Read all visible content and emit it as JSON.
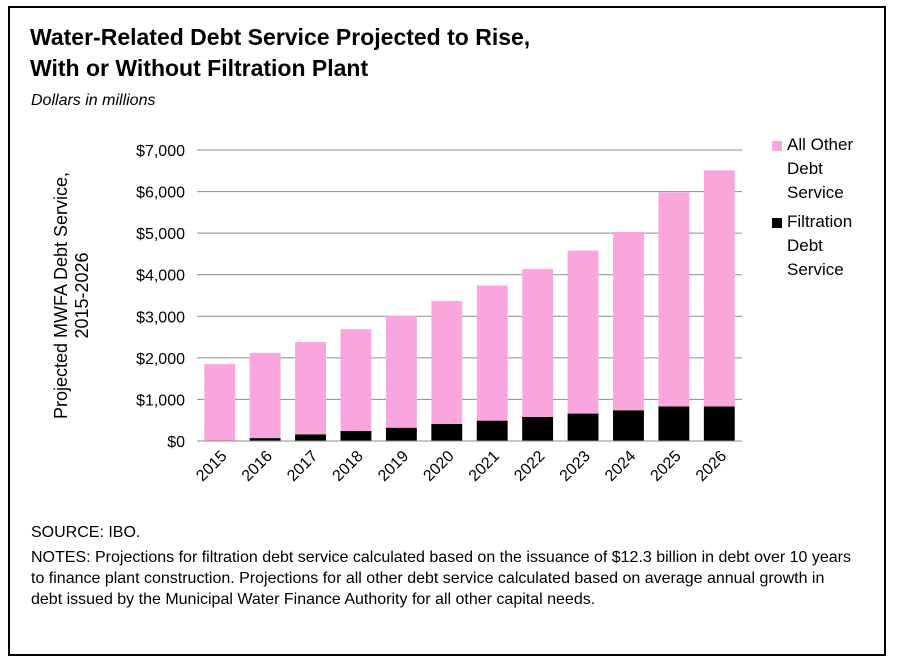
{
  "title_line1": "Water-Related Debt Service Projected to Rise,",
  "title_line2": "With or Without Filtration Plant",
  "subtitle": "Dollars in millions",
  "source": "SOURCE: IBO.",
  "notes": "NOTES: Projections for filtration debt service calculated based on the issuance of $12.3 billion in debt over 10 years to finance plant construction. Projections for all other debt service calculated based on average annual growth in debt issued by the Municipal Water Finance Authority for all other capital needs.",
  "colors": {
    "other": "#F9A6DE",
    "filtration": "#000000",
    "grid": "#8C8C8C"
  },
  "chart_data": {
    "type": "bar",
    "stacked": true,
    "ylabel_line1": "Projected MWFA Debt Service,",
    "ylabel_line2": "2015-2026",
    "ylim": [
      0,
      7000
    ],
    "y_ticks": [
      0,
      1000,
      2000,
      3000,
      4000,
      5000,
      6000,
      7000
    ],
    "y_tick_labels": [
      "$0",
      "$1,000",
      "$2,000",
      "$3,000",
      "$4,000",
      "$5,000",
      "$6,000",
      "$7,000"
    ],
    "categories": [
      "2015",
      "2016",
      "2017",
      "2018",
      "2019",
      "2020",
      "2021",
      "2022",
      "2023",
      "2024",
      "2025",
      "2026"
    ],
    "series": [
      {
        "name": "Filtration Debt Service",
        "legend_lines": [
          "Filtration",
          "Debt",
          "Service"
        ],
        "color": "#000000",
        "values": [
          0,
          70,
          160,
          240,
          320,
          410,
          490,
          580,
          660,
          740,
          830,
          830
        ]
      },
      {
        "name": "All Other Debt Service",
        "legend_lines": [
          "All Other",
          "Debt",
          "Service"
        ],
        "color": "#F9A6DE",
        "values": [
          1850,
          2050,
          2220,
          2450,
          2690,
          2960,
          3250,
          3560,
          3920,
          4290,
          5150,
          5680
        ]
      }
    ],
    "grid": true,
    "legend_position": "right"
  }
}
